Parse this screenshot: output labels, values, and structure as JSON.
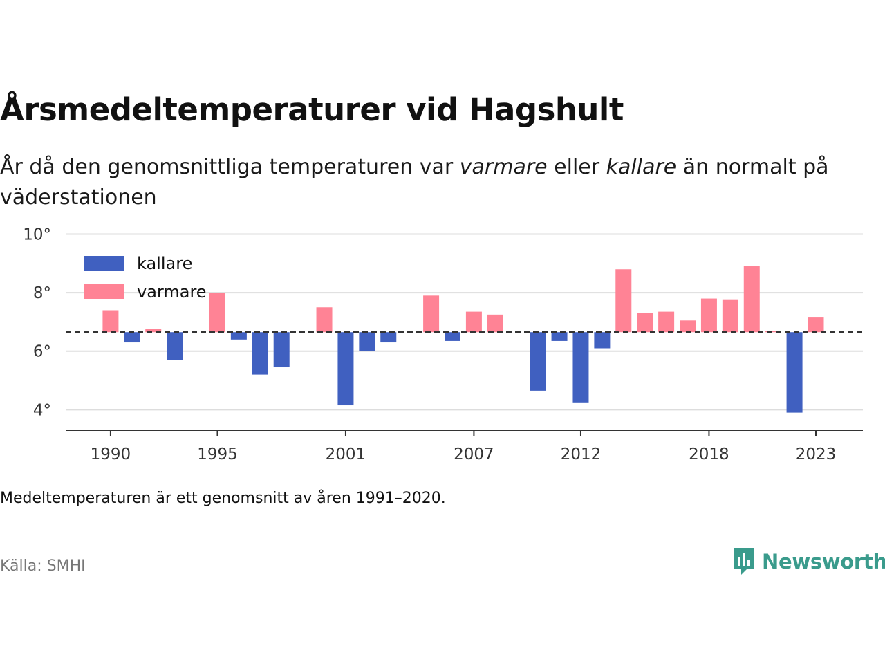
{
  "title": "Årsmedeltemperaturer vid Hagshult",
  "subtitle": {
    "part1": "År då den genomsnittliga temperaturen var ",
    "warm_word": "varmare",
    "part2": " eller ",
    "cold_word": "kallare",
    "part3": " än normalt på väderstationen"
  },
  "note": "Medeltemperaturen är ett genomsnitt av åren 1991–2020.",
  "source": "Källa: SMHI",
  "brand": {
    "name": "Newsworthy",
    "icon": "newsworthy-logo-icon"
  },
  "colors": {
    "kallare": "#4060c0",
    "varmare": "#ff8395",
    "reference": "#333333",
    "grid": "#dddddd"
  },
  "chart_data": {
    "type": "bar",
    "x": [
      1990,
      1991,
      1992,
      1993,
      1995,
      1996,
      1997,
      1998,
      2000,
      2001,
      2002,
      2003,
      2005,
      2006,
      2007,
      2008,
      2010,
      2011,
      2012,
      2013,
      2014,
      2015,
      2016,
      2017,
      2018,
      2019,
      2020,
      2021,
      2022,
      2023
    ],
    "values": [
      7.4,
      6.3,
      6.75,
      5.7,
      8.0,
      6.4,
      5.2,
      5.45,
      7.5,
      4.15,
      6.0,
      6.3,
      7.9,
      6.35,
      7.35,
      7.25,
      4.65,
      6.35,
      4.25,
      6.1,
      8.8,
      7.3,
      7.35,
      7.05,
      7.8,
      7.75,
      8.9,
      6.7,
      3.9,
      7.15
    ],
    "baseline": 6.65,
    "series": [
      {
        "name": "kallare"
      },
      {
        "name": "varmare"
      }
    ],
    "yticks": [
      "4°",
      "6°",
      "8°",
      "10°"
    ],
    "ytick_values": [
      4,
      6,
      8,
      10
    ],
    "xticks": [
      "1990",
      "1995",
      "2001",
      "2007",
      "2012",
      "2018",
      "2023"
    ],
    "xtick_values": [
      1990,
      1995,
      2001,
      2007,
      2012,
      2018,
      2023
    ],
    "ylim": [
      3.3,
      10.2
    ],
    "xlim": [
      1987.9,
      2025.2
    ],
    "grid": "horizontal",
    "legend_position": "top-left"
  }
}
